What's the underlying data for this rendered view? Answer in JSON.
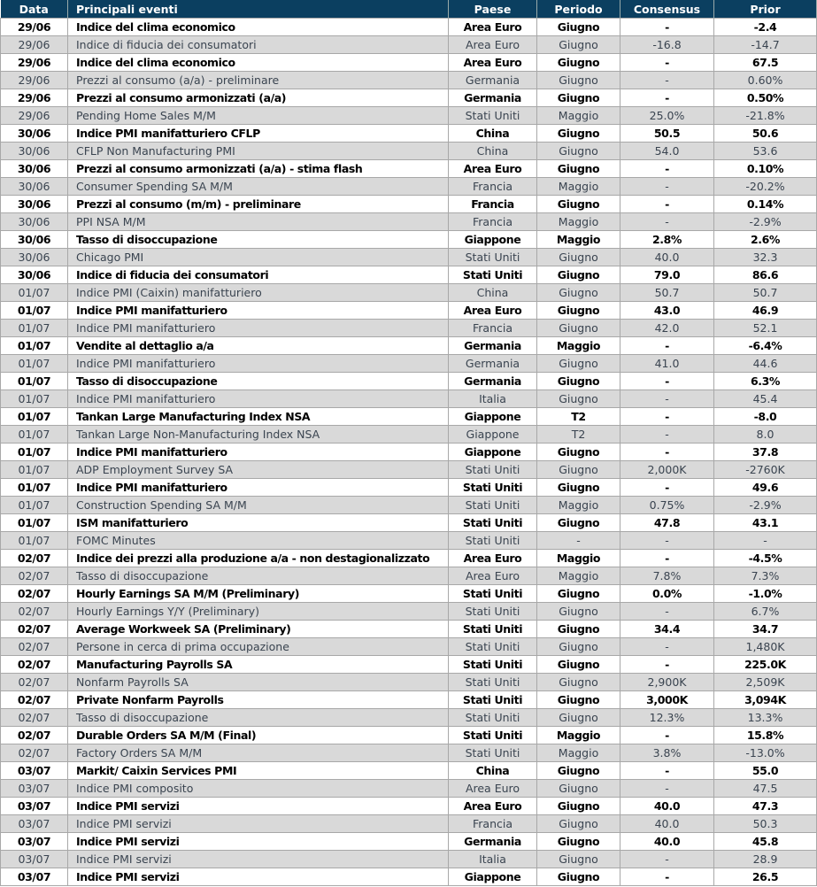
{
  "header": {
    "date": "Data",
    "event": "Principali eventi",
    "country": "Paese",
    "period": "Periodo",
    "consensus": "Consensus",
    "prior": "Prior"
  },
  "colors": {
    "header_bg": "#0b3f60",
    "alt_row": "#d9d9d9"
  },
  "rows": [
    [
      "29/06",
      "Indice del clima economico",
      "Area Euro",
      "Giugno",
      "-",
      "-2.4"
    ],
    [
      "29/06",
      "Indice di fiducia dei consumatori",
      "Area Euro",
      "Giugno",
      "-16.8",
      "-14.7"
    ],
    [
      "29/06",
      "Indice del clima economico",
      "Area Euro",
      "Giugno",
      "-",
      "67.5"
    ],
    [
      "29/06",
      "Prezzi al consumo (a/a) - preliminare",
      "Germania",
      "Giugno",
      "-",
      "0.60%"
    ],
    [
      "29/06",
      "Prezzi al consumo armonizzati (a/a)",
      "Germania",
      "Giugno",
      "-",
      "0.50%"
    ],
    [
      "29/06",
      "Pending Home Sales M/M",
      "Stati Uniti",
      "Maggio",
      "25.0%",
      "-21.8%"
    ],
    [
      "30/06",
      "Indice PMI manifatturiero CFLP",
      "China",
      "Giugno",
      "50.5",
      "50.6"
    ],
    [
      "30/06",
      "CFLP Non Manufacturing PMI",
      "China",
      "Giugno",
      "54.0",
      "53.6"
    ],
    [
      "30/06",
      "Prezzi al consumo armonizzati (a/a) - stima flash",
      "Area Euro",
      "Giugno",
      "-",
      "0.10%"
    ],
    [
      "30/06",
      "Consumer Spending SA M/M",
      "Francia",
      "Maggio",
      "-",
      "-20.2%"
    ],
    [
      "30/06",
      "Prezzi al consumo (m/m) - preliminare",
      "Francia",
      "Giugno",
      "-",
      "0.14%"
    ],
    [
      "30/06",
      "PPI NSA M/M",
      "Francia",
      "Maggio",
      "-",
      "-2.9%"
    ],
    [
      "30/06",
      "Tasso di disoccupazione",
      "Giappone",
      "Maggio",
      "2.8%",
      "2.6%"
    ],
    [
      "30/06",
      "Chicago PMI",
      "Stati Uniti",
      "Giugno",
      "40.0",
      "32.3"
    ],
    [
      "30/06",
      "Indice di fiducia dei consumatori",
      "Stati Uniti",
      "Giugno",
      "79.0",
      "86.6"
    ],
    [
      "01/07",
      "Indice PMI (Caixin) manifatturiero",
      "China",
      "Giugno",
      "50.7",
      "50.7"
    ],
    [
      "01/07",
      "Indice PMI manifatturiero",
      "Area Euro",
      "Giugno",
      "43.0",
      "46.9"
    ],
    [
      "01/07",
      "Indice PMI manifatturiero",
      "Francia",
      "Giugno",
      "42.0",
      "52.1"
    ],
    [
      "01/07",
      "Vendite al dettaglio a/a",
      "Germania",
      "Maggio",
      "-",
      "-6.4%"
    ],
    [
      "01/07",
      "Indice PMI manifatturiero",
      "Germania",
      "Giugno",
      "41.0",
      "44.6"
    ],
    [
      "01/07",
      "Tasso di disoccupazione",
      "Germania",
      "Giugno",
      "-",
      "6.3%"
    ],
    [
      "01/07",
      "Indice PMI manifatturiero",
      "Italia",
      "Giugno",
      "-",
      "45.4"
    ],
    [
      "01/07",
      "Tankan Large Manufacturing Index NSA",
      "Giappone",
      "T2",
      "-",
      "-8.0"
    ],
    [
      "01/07",
      "Tankan Large Non-Manufacturing Index NSA",
      "Giappone",
      "T2",
      "-",
      "8.0"
    ],
    [
      "01/07",
      "Indice PMI manifatturiero",
      "Giappone",
      "Giugno",
      "-",
      "37.8"
    ],
    [
      "01/07",
      "ADP Employment Survey SA",
      "Stati Uniti",
      "Giugno",
      "2,000K",
      "-2760K"
    ],
    [
      "01/07",
      "Indice PMI manifatturiero",
      "Stati Uniti",
      "Giugno",
      "-",
      "49.6"
    ],
    [
      "01/07",
      "Construction Spending SA M/M",
      "Stati Uniti",
      "Maggio",
      "0.75%",
      "-2.9%"
    ],
    [
      "01/07",
      "ISM manifatturiero",
      "Stati Uniti",
      "Giugno",
      "47.8",
      "43.1"
    ],
    [
      "01/07",
      "FOMC Minutes",
      "Stati Uniti",
      "-",
      "-",
      "-"
    ],
    [
      "02/07",
      "Indice dei prezzi alla produzione a/a -  non destagionalizzato",
      "Area Euro",
      "Maggio",
      "-",
      "-4.5%"
    ],
    [
      "02/07",
      "Tasso di disoccupazione",
      "Area Euro",
      "Maggio",
      "7.8%",
      "7.3%"
    ],
    [
      "02/07",
      "Hourly Earnings SA M/M (Preliminary)",
      "Stati Uniti",
      "Giugno",
      "0.0%",
      "-1.0%"
    ],
    [
      "02/07",
      "Hourly Earnings Y/Y (Preliminary)",
      "Stati Uniti",
      "Giugno",
      "-",
      "6.7%"
    ],
    [
      "02/07",
      "Average Workweek SA (Preliminary)",
      "Stati Uniti",
      "Giugno",
      "34.4",
      "34.7"
    ],
    [
      "02/07",
      "Persone in cerca di prima occupazione",
      "Stati Uniti",
      "Giugno",
      "-",
      "1,480K"
    ],
    [
      "02/07",
      "Manufacturing Payrolls SA",
      "Stati Uniti",
      "Giugno",
      "-",
      "225.0K"
    ],
    [
      "02/07",
      "Nonfarm Payrolls SA",
      "Stati Uniti",
      "Giugno",
      "2,900K",
      "2,509K"
    ],
    [
      "02/07",
      "Private Nonfarm Payrolls",
      "Stati Uniti",
      "Giugno",
      "3,000K",
      "3,094K"
    ],
    [
      "02/07",
      "Tasso di disoccupazione",
      "Stati Uniti",
      "Giugno",
      "12.3%",
      "13.3%"
    ],
    [
      "02/07",
      "Durable Orders SA M/M (Final)",
      "Stati Uniti",
      "Maggio",
      "-",
      "15.8%"
    ],
    [
      "02/07",
      "Factory Orders SA M/M",
      "Stati Uniti",
      "Maggio",
      "3.8%",
      "-13.0%"
    ],
    [
      "03/07",
      "Markit/ Caixin Services PMI",
      "China",
      "Giugno",
      "-",
      "55.0"
    ],
    [
      "03/07",
      "Indice PMI composito",
      "Area Euro",
      "Giugno",
      "-",
      "47.5"
    ],
    [
      "03/07",
      "Indice PMI servizi",
      "Area Euro",
      "Giugno",
      "40.0",
      "47.3"
    ],
    [
      "03/07",
      "Indice PMI servizi",
      "Francia",
      "Giugno",
      "40.0",
      "50.3"
    ],
    [
      "03/07",
      "Indice PMI servizi",
      "Germania",
      "Giugno",
      "40.0",
      "45.8"
    ],
    [
      "03/07",
      "Indice PMI servizi",
      "Italia",
      "Giugno",
      "-",
      "28.9"
    ],
    [
      "03/07",
      "Indice PMI servizi",
      "Giappone",
      "Giugno",
      "-",
      "26.5"
    ]
  ]
}
